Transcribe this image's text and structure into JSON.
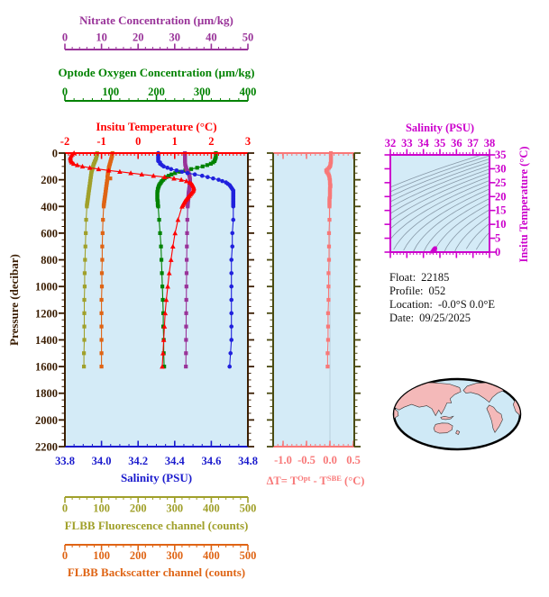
{
  "figure": {
    "plot_bg": "#d4ebf7",
    "frame_brown": "#3a1d02",
    "frame_olive": "#4a4a10",
    "map_land": "#f4b9b9",
    "map_ocean": "#cfe9f6",
    "contour_color": "#8899a8"
  },
  "float_info": {
    "rows": [
      {
        "label": "Float:",
        "value": "22185"
      },
      {
        "label": "Profile:",
        "value": "052"
      },
      {
        "label": "Location:",
        "value": "-0.0°S  0.0°E"
      },
      {
        "label": "Date:",
        "value": "09/25/2025"
      }
    ]
  },
  "axes": {
    "nitrate": {
      "title": "Nitrate Concentration (µm/kg)",
      "color": "#993399",
      "range": [
        0,
        50
      ],
      "ticks": [
        0,
        10,
        20,
        30,
        40,
        50
      ],
      "tick_labels": [
        "0",
        "10",
        "20",
        "30",
        "40",
        "50"
      ],
      "minor_step": 2
    },
    "oxygen": {
      "title": "Optode Oxygen Concentration (µm/kg)",
      "color": "#008200",
      "range": [
        0,
        400
      ],
      "ticks": [
        0,
        100,
        200,
        300,
        400
      ],
      "tick_labels": [
        "0",
        "100",
        "200",
        "300",
        "400"
      ],
      "minor_step": 20
    },
    "temperature": {
      "title": "Insitu Temperature (°C)",
      "color": "#ff0000",
      "range": [
        -2,
        3
      ],
      "ticks": [
        -2,
        -1,
        0,
        1,
        2,
        3
      ],
      "tick_labels": [
        "-2",
        "-1",
        "0",
        "1",
        "2",
        "3"
      ],
      "minor_step": 0.1
    },
    "pressure": {
      "title": "Pressure (decibar)",
      "color": "#3a1d02",
      "range": [
        0,
        2200
      ],
      "ticks": [
        0,
        200,
        400,
        600,
        800,
        1000,
        1200,
        1400,
        1600,
        1800,
        2000,
        2200
      ],
      "tick_labels": [
        "0",
        "200",
        "400",
        "600",
        "800",
        "1000",
        "1200",
        "1400",
        "1600",
        "1800",
        "2000",
        "2200"
      ],
      "minor_step": 50
    },
    "salinity": {
      "title": "Salinity (PSU)",
      "color": "#1a1acd",
      "range": [
        33.8,
        34.8
      ],
      "ticks": [
        33.8,
        34.0,
        34.2,
        34.4,
        34.6,
        34.8
      ],
      "tick_labels": [
        "33.8",
        "34.0",
        "34.2",
        "34.4",
        "34.6",
        "34.8"
      ],
      "minor_step": 0.05
    },
    "fluorescence": {
      "title": "FLBB Fluorescence channel (counts)",
      "color": "#a0a02a",
      "range": [
        0,
        500
      ],
      "ticks": [
        0,
        100,
        200,
        300,
        400,
        500
      ],
      "tick_labels": [
        "0",
        "100",
        "200",
        "300",
        "400",
        "500"
      ],
      "minor_step": 20
    },
    "backscatter": {
      "title": "FLBB Backscatter channel (counts)",
      "color": "#df6414",
      "range": [
        0,
        500
      ],
      "ticks": [
        0,
        100,
        200,
        300,
        400,
        500
      ],
      "tick_labels": [
        "0",
        "100",
        "200",
        "300",
        "400",
        "500"
      ],
      "minor_step": 20
    },
    "delta_t": {
      "title_prefix": "ΔT= T",
      "title_sup1": "Opt",
      "title_mid": " - T",
      "title_sup2": "SBE",
      "title_suffix": " (°C)",
      "color": "#f87878",
      "range": [
        -1.212,
        0.519
      ],
      "ticks": [
        -1.0,
        -0.5,
        0.0,
        0.5
      ],
      "tick_labels": [
        "-1.0",
        "-0.5",
        "0.0",
        "0.5"
      ],
      "minor_step": 0.1
    },
    "ts_salinity": {
      "title": "Salinity (PSU)",
      "color": "#cc00cc",
      "range": [
        32,
        38
      ],
      "ticks": [
        32,
        33,
        34,
        35,
        36,
        37,
        38
      ],
      "tick_labels": [
        "32",
        "33",
        "34",
        "35",
        "36",
        "37",
        "38"
      ],
      "minor_step": 0.2
    },
    "ts_temperature": {
      "title": "Insitu Temperature (°C)",
      "color": "#cc00cc",
      "range": [
        0,
        35
      ],
      "ticks": [
        0,
        5,
        10,
        15,
        20,
        25,
        30,
        35
      ],
      "tick_labels": [
        "0",
        "5",
        "10",
        "15",
        "20",
        "25",
        "30",
        "35"
      ],
      "minor_step": 1
    }
  },
  "chart_data": [
    {
      "id": "profile-plot",
      "type": "line",
      "ylabel": "Pressure (decibar)",
      "ylim": [
        0,
        2200
      ],
      "y_inverted": true,
      "grid": false,
      "pressures": [
        0,
        10,
        20,
        30,
        40,
        50,
        60,
        70,
        80,
        90,
        100,
        110,
        120,
        130,
        140,
        150,
        160,
        170,
        180,
        190,
        200,
        210,
        220,
        230,
        240,
        250,
        260,
        270,
        280,
        290,
        300,
        310,
        320,
        330,
        340,
        350,
        360,
        370,
        380,
        390,
        400,
        500,
        600,
        700,
        800,
        900,
        1000,
        1100,
        1200,
        1300,
        1400,
        1500,
        1600
      ],
      "series": [
        {
          "name": "FLBB Fluorescence channel",
          "axis": "fluorescence",
          "color": "#a0a02a",
          "marker": "square",
          "values": [
            88,
            88,
            87,
            86,
            85,
            84,
            82,
            81,
            79,
            78,
            77,
            76,
            75,
            74,
            73,
            72,
            72,
            71,
            71,
            70,
            70,
            69,
            69,
            68,
            68,
            67,
            67,
            66,
            66,
            65,
            65,
            64,
            64,
            63,
            63,
            62,
            62,
            61,
            61,
            60,
            60,
            58,
            57,
            56,
            55,
            54,
            54,
            53,
            53,
            53,
            53,
            52,
            52
          ]
        },
        {
          "name": "FLBB Backscatter channel",
          "axis": "backscatter",
          "color": "#df6414",
          "marker": "square",
          "values": [
            130,
            129,
            129,
            128,
            127,
            126,
            125,
            124,
            123,
            122,
            121,
            120,
            120,
            119,
            118,
            118,
            117,
            117,
            116,
            124,
            116,
            115,
            115,
            114,
            114,
            113,
            113,
            112,
            112,
            111,
            111,
            110,
            110,
            109,
            109,
            108,
            108,
            107,
            107,
            106,
            106,
            104,
            103,
            102,
            102,
            101,
            101,
            100,
            100,
            100,
            100,
            100,
            100
          ]
        },
        {
          "name": "Optode Oxygen Concentration",
          "axis": "oxygen",
          "color": "#008200",
          "marker": "square",
          "values": [
            330,
            330,
            330,
            330,
            329,
            328,
            327,
            324,
            319,
            311,
            301,
            289,
            276,
            263,
            251,
            241,
            233,
            227,
            222,
            218,
            215,
            212,
            210,
            208,
            206,
            205,
            204,
            203,
            203,
            202,
            202,
            202,
            202,
            202,
            202,
            202,
            203,
            203,
            203,
            203,
            204,
            206,
            208,
            210,
            211,
            212,
            213,
            214,
            215,
            215,
            216,
            216,
            217
          ]
        },
        {
          "name": "Nitrate Concentration",
          "axis": "nitrate",
          "color": "#993399",
          "marker": "square",
          "values": [
            32.8,
            32.8,
            32.8,
            32.8,
            32.8,
            32.8,
            32.8,
            32.85,
            32.85,
            32.9,
            33.0,
            33.1,
            33.2,
            33.4,
            33.6,
            33.8,
            33.95,
            34.05,
            34.1,
            34.15,
            34.2,
            34.2,
            34.2,
            34.15,
            34.1,
            34.05,
            34.0,
            33.95,
            33.9,
            33.85,
            33.8,
            33.78,
            33.75,
            33.72,
            33.7,
            33.68,
            33.65,
            33.62,
            33.6,
            33.58,
            33.55,
            33.45,
            33.38,
            33.32,
            33.28,
            33.24,
            33.2,
            33.17,
            33.14,
            33.12,
            33.1,
            33.08,
            33.05
          ]
        },
        {
          "name": "Salinity",
          "axis": "salinity",
          "color": "#2020dd",
          "marker": "circle",
          "values": [
            34.31,
            34.31,
            34.31,
            34.31,
            34.31,
            34.31,
            34.31,
            34.32,
            34.32,
            34.33,
            34.34,
            34.36,
            34.38,
            34.41,
            34.44,
            34.47,
            34.51,
            34.55,
            34.58,
            34.61,
            34.64,
            34.66,
            34.68,
            34.69,
            34.7,
            34.705,
            34.71,
            34.715,
            34.72,
            34.72,
            34.72,
            34.72,
            34.72,
            34.72,
            34.72,
            34.72,
            34.72,
            34.72,
            34.72,
            34.72,
            34.72,
            34.72,
            34.715,
            34.715,
            34.71,
            34.71,
            34.71,
            34.71,
            34.71,
            34.71,
            34.71,
            34.705,
            34.7
          ]
        },
        {
          "name": "Insitu Temperature",
          "axis": "temperature",
          "color": "#ff0000",
          "marker": "triangle",
          "values": [
            -1.75,
            -1.8,
            -1.83,
            -1.85,
            -1.85,
            -1.84,
            -1.83,
            -1.81,
            -1.76,
            -1.66,
            -1.52,
            -1.32,
            -1.08,
            -0.8,
            -0.5,
            -0.2,
            0.1,
            0.42,
            0.72,
            0.98,
            1.18,
            1.32,
            1.41,
            1.46,
            1.49,
            1.51,
            1.52,
            1.52,
            1.51,
            1.49,
            1.46,
            1.43,
            1.4,
            1.37,
            1.34,
            1.31,
            1.28,
            1.26,
            1.24,
            1.22,
            1.2,
            1.09,
            1.01,
            0.95,
            0.9,
            0.85,
            0.81,
            0.77,
            0.74,
            0.72,
            0.7,
            0.68,
            0.66
          ]
        }
      ]
    },
    {
      "id": "delta-t-plot",
      "type": "line",
      "xlabel": "ΔT= TOpt - TSBE (°C)",
      "xlim": [
        -1.212,
        0.519
      ],
      "zero_gridline": true,
      "series": [
        {
          "name": "ΔT",
          "axis": "delta_t",
          "color": "#f87878",
          "marker": "square",
          "values": [
            0.02,
            0.02,
            0.02,
            0.02,
            0.02,
            0.02,
            0.02,
            0.02,
            0.01,
            0.01,
            0.0,
            -0.02,
            -0.05,
            -0.08,
            -0.07,
            -0.05,
            -0.03,
            -0.02,
            -0.01,
            -0.01,
            0.0,
            0.0,
            0.0,
            0.0,
            0.01,
            0.01,
            0.0,
            0.0,
            0.0,
            0.0,
            0.0,
            0.0,
            0.0,
            0.0,
            -0.01,
            -0.01,
            -0.01,
            -0.01,
            -0.01,
            -0.01,
            -0.01,
            -0.01,
            -0.02,
            -0.02,
            -0.02,
            -0.03,
            -0.03,
            -0.03,
            -0.04,
            -0.04,
            -0.04,
            -0.05,
            -0.05
          ]
        }
      ]
    },
    {
      "id": "ts-diagram",
      "type": "scatter",
      "xlabel": "Salinity (PSU)",
      "xlim": [
        32,
        38
      ],
      "ylabel": "Insitu Temperature (°C)",
      "ylim": [
        0,
        35
      ],
      "background": "isopycnal density contours",
      "marker_color": "#cc00cc",
      "note": "scatter points are (salinity, temperature) pairs of the profile with temperature >= 0"
    }
  ]
}
